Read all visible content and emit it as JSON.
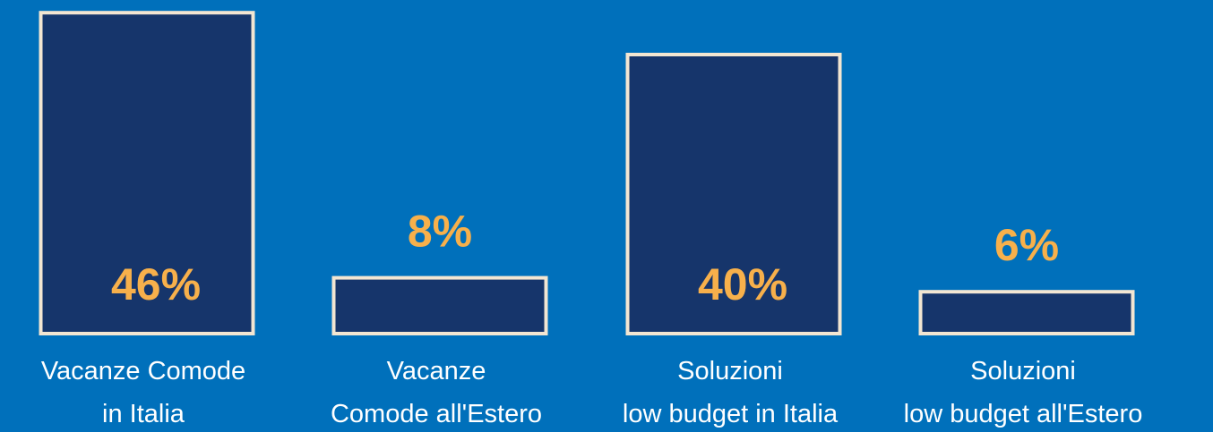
{
  "chart_data": {
    "type": "bar",
    "categories": [
      [
        "Vacanze Comode",
        "in  Italia"
      ],
      [
        "Vacanze",
        "Comode all'Estero"
      ],
      [
        "Soluzioni",
        "low budget in Italia"
      ],
      [
        "Soluzioni",
        "low budget all'Estero"
      ]
    ],
    "values": [
      46,
      8,
      40,
      6
    ],
    "value_labels": [
      "46%",
      "8%",
      "40%",
      "6%"
    ],
    "color": "#16356b"
  }
}
